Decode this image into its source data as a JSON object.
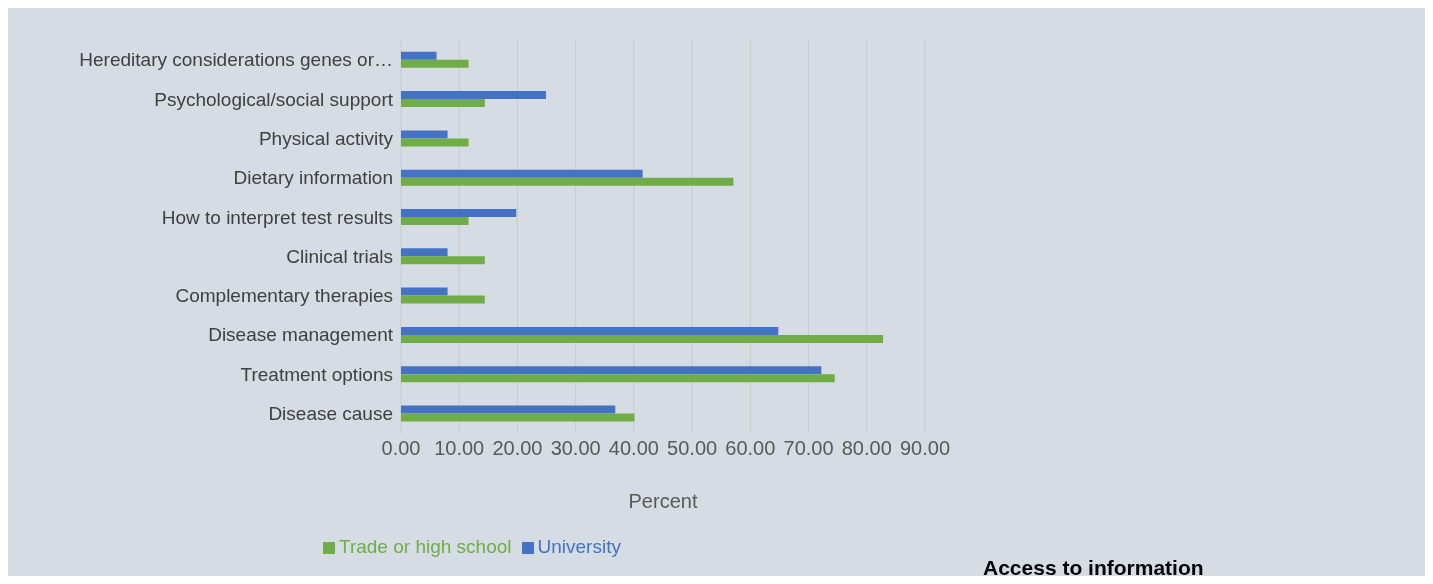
{
  "chart_data": {
    "type": "bar",
    "orientation": "horizontal",
    "title": "Access to information",
    "xlabel": "Percent",
    "categories": [
      "Hereditary considerations genes or…",
      "Psychological/social support",
      "Physical activity",
      "Dietary information",
      "How to interpret test results",
      "Clinical trials",
      "Complementary therapies",
      "Disease management",
      "Treatment options",
      "Disease cause"
    ],
    "series": [
      {
        "name": "University",
        "color": "#4472c4",
        "values": [
          6.1,
          24.9,
          8.0,
          41.5,
          19.8,
          8.0,
          8.0,
          64.8,
          72.2,
          36.8
        ]
      },
      {
        "name": "Trade or high school",
        "color": "#70ad47",
        "values": [
          11.6,
          14.4,
          11.6,
          57.1,
          11.6,
          14.4,
          14.4,
          82.8,
          74.5,
          40.1
        ]
      }
    ],
    "xlim": [
      0,
      90
    ],
    "xticks": [
      {
        "value": 0,
        "label": "0.00"
      },
      {
        "value": 10,
        "label": "10.00"
      },
      {
        "value": 20,
        "label": "20.00"
      },
      {
        "value": 30,
        "label": "30.00"
      },
      {
        "value": 40,
        "label": "40.00"
      },
      {
        "value": 50,
        "label": "50.00"
      },
      {
        "value": 60,
        "label": "60.00"
      },
      {
        "value": 70,
        "label": "70.00"
      },
      {
        "value": 80,
        "label": "80.00"
      },
      {
        "value": 90,
        "label": "90.00"
      }
    ],
    "grid": "x",
    "legend": "bottom"
  }
}
